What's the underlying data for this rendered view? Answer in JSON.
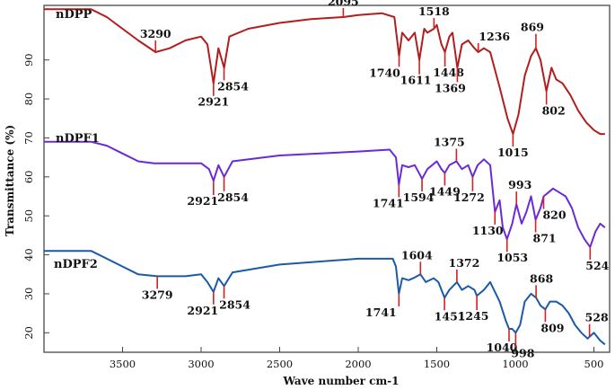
{
  "chart_data": {
    "type": "line",
    "xlabel": "Wave number cm-1",
    "ylabel": "Transmittance (%)",
    "xlim": [
      4000,
      400
    ],
    "ylim": [
      15,
      104
    ],
    "x_reversed": true,
    "grid": false,
    "x_ticks": [
      "3500",
      "3000",
      "2500",
      "2000",
      "1500",
      "1000",
      "500"
    ],
    "y_ticks": [
      "20",
      "30",
      "40",
      "50",
      "60",
      "70",
      "80",
      "90"
    ],
    "series": [
      {
        "name": "nDPP",
        "color": "#b21d1d",
        "points": [
          [
            4000,
            103
          ],
          [
            3700,
            103
          ],
          [
            3600,
            101
          ],
          [
            3500,
            98
          ],
          [
            3400,
            95
          ],
          [
            3290,
            92
          ],
          [
            3200,
            93
          ],
          [
            3100,
            95
          ],
          [
            3000,
            96
          ],
          [
            2960,
            94
          ],
          [
            2921,
            84
          ],
          [
            2890,
            93
          ],
          [
            2854,
            88
          ],
          [
            2820,
            96
          ],
          [
            2700,
            98
          ],
          [
            2500,
            99.5
          ],
          [
            2300,
            100.5
          ],
          [
            2095,
            101
          ],
          [
            2000,
            101.5
          ],
          [
            1850,
            102
          ],
          [
            1770,
            101
          ],
          [
            1740,
            91
          ],
          [
            1720,
            97
          ],
          [
            1680,
            95
          ],
          [
            1640,
            97
          ],
          [
            1611,
            90
          ],
          [
            1580,
            98
          ],
          [
            1560,
            97
          ],
          [
            1518,
            98
          ],
          [
            1500,
            99
          ],
          [
            1470,
            94
          ],
          [
            1448,
            92
          ],
          [
            1420,
            96
          ],
          [
            1400,
            97
          ],
          [
            1369,
            88
          ],
          [
            1340,
            94
          ],
          [
            1300,
            95
          ],
          [
            1260,
            93
          ],
          [
            1236,
            92
          ],
          [
            1200,
            93
          ],
          [
            1160,
            92
          ],
          [
            1100,
            83
          ],
          [
            1050,
            75
          ],
          [
            1015,
            71
          ],
          [
            980,
            76
          ],
          [
            940,
            86
          ],
          [
            900,
            91
          ],
          [
            869,
            93
          ],
          [
            840,
            90
          ],
          [
            802,
            82
          ],
          [
            770,
            88
          ],
          [
            740,
            85
          ],
          [
            700,
            84
          ],
          [
            650,
            81
          ],
          [
            600,
            77
          ],
          [
            550,
            74
          ],
          [
            500,
            72
          ],
          [
            460,
            71
          ],
          [
            430,
            71
          ]
        ],
        "peak_labels": [
          "3290",
          "2921",
          "2854",
          "2095",
          "1740",
          "1611",
          "1518",
          "1448",
          "1369",
          "1236",
          "869",
          "802",
          "1015"
        ]
      },
      {
        "name": "nDPF1",
        "color": "#6a2ad6",
        "points": [
          [
            4000,
            69
          ],
          [
            3700,
            69
          ],
          [
            3600,
            68
          ],
          [
            3500,
            66
          ],
          [
            3400,
            64
          ],
          [
            3300,
            63.5
          ],
          [
            3000,
            63.5
          ],
          [
            2950,
            62
          ],
          [
            2921,
            59
          ],
          [
            2890,
            63
          ],
          [
            2854,
            60
          ],
          [
            2800,
            64
          ],
          [
            2500,
            65.5
          ],
          [
            2000,
            66.5
          ],
          [
            1800,
            67
          ],
          [
            1760,
            65
          ],
          [
            1741,
            58
          ],
          [
            1720,
            63
          ],
          [
            1680,
            62.5
          ],
          [
            1640,
            63
          ],
          [
            1600,
            60
          ],
          [
            1594,
            59.5
          ],
          [
            1560,
            62
          ],
          [
            1500,
            64
          ],
          [
            1470,
            62
          ],
          [
            1449,
            61
          ],
          [
            1420,
            63
          ],
          [
            1375,
            64
          ],
          [
            1340,
            62
          ],
          [
            1300,
            63
          ],
          [
            1272,
            60
          ],
          [
            1240,
            63
          ],
          [
            1200,
            64.5
          ],
          [
            1160,
            63
          ],
          [
            1130,
            51
          ],
          [
            1100,
            54
          ],
          [
            1080,
            47
          ],
          [
            1053,
            44
          ],
          [
            1020,
            48
          ],
          [
            993,
            53
          ],
          [
            960,
            48
          ],
          [
            930,
            51
          ],
          [
            900,
            55
          ],
          [
            871,
            49
          ],
          [
            840,
            52
          ],
          [
            820,
            55
          ],
          [
            790,
            56
          ],
          [
            760,
            57
          ],
          [
            720,
            56
          ],
          [
            680,
            55
          ],
          [
            640,
            52
          ],
          [
            600,
            47
          ],
          [
            560,
            44
          ],
          [
            524,
            42
          ],
          [
            490,
            46
          ],
          [
            460,
            48
          ],
          [
            430,
            47
          ]
        ],
        "peak_labels": [
          "2921",
          "2854",
          "1741",
          "1594",
          "1375",
          "1449",
          "1272",
          "1130",
          "993",
          "871",
          "820",
          "1053",
          "524"
        ]
      },
      {
        "name": "nDPF2",
        "color": "#1a5aa6",
        "points": [
          [
            4000,
            41
          ],
          [
            3700,
            41
          ],
          [
            3600,
            39
          ],
          [
            3500,
            37
          ],
          [
            3400,
            35
          ],
          [
            3279,
            34.5
          ],
          [
            3100,
            34.5
          ],
          [
            3000,
            35
          ],
          [
            2960,
            33
          ],
          [
            2921,
            30.5
          ],
          [
            2890,
            34
          ],
          [
            2854,
            32
          ],
          [
            2800,
            35.5
          ],
          [
            2500,
            37.5
          ],
          [
            2000,
            39
          ],
          [
            1780,
            39
          ],
          [
            1760,
            37
          ],
          [
            1741,
            30
          ],
          [
            1720,
            34
          ],
          [
            1680,
            33.5
          ],
          [
            1650,
            34
          ],
          [
            1604,
            35
          ],
          [
            1570,
            33
          ],
          [
            1520,
            34
          ],
          [
            1490,
            33
          ],
          [
            1451,
            29
          ],
          [
            1420,
            31
          ],
          [
            1372,
            33
          ],
          [
            1340,
            31
          ],
          [
            1300,
            32
          ],
          [
            1260,
            31
          ],
          [
            1245,
            29.5
          ],
          [
            1200,
            31
          ],
          [
            1160,
            33
          ],
          [
            1100,
            28
          ],
          [
            1060,
            23
          ],
          [
            1040,
            21
          ],
          [
            1020,
            21
          ],
          [
            998,
            20
          ],
          [
            970,
            22
          ],
          [
            940,
            28
          ],
          [
            900,
            30
          ],
          [
            868,
            29
          ],
          [
            840,
            27
          ],
          [
            809,
            26
          ],
          [
            780,
            28
          ],
          [
            740,
            28
          ],
          [
            700,
            27
          ],
          [
            660,
            25
          ],
          [
            620,
            22
          ],
          [
            580,
            20
          ],
          [
            540,
            18.5
          ],
          [
            528,
            19
          ],
          [
            500,
            20
          ],
          [
            460,
            18
          ],
          [
            430,
            17
          ]
        ],
        "peak_labels": [
          "3279",
          "2921",
          "2854",
          "1741",
          "1604",
          "1451",
          "1372",
          "1245",
          "868",
          "809",
          "1040",
          "998",
          "528"
        ]
      }
    ]
  }
}
